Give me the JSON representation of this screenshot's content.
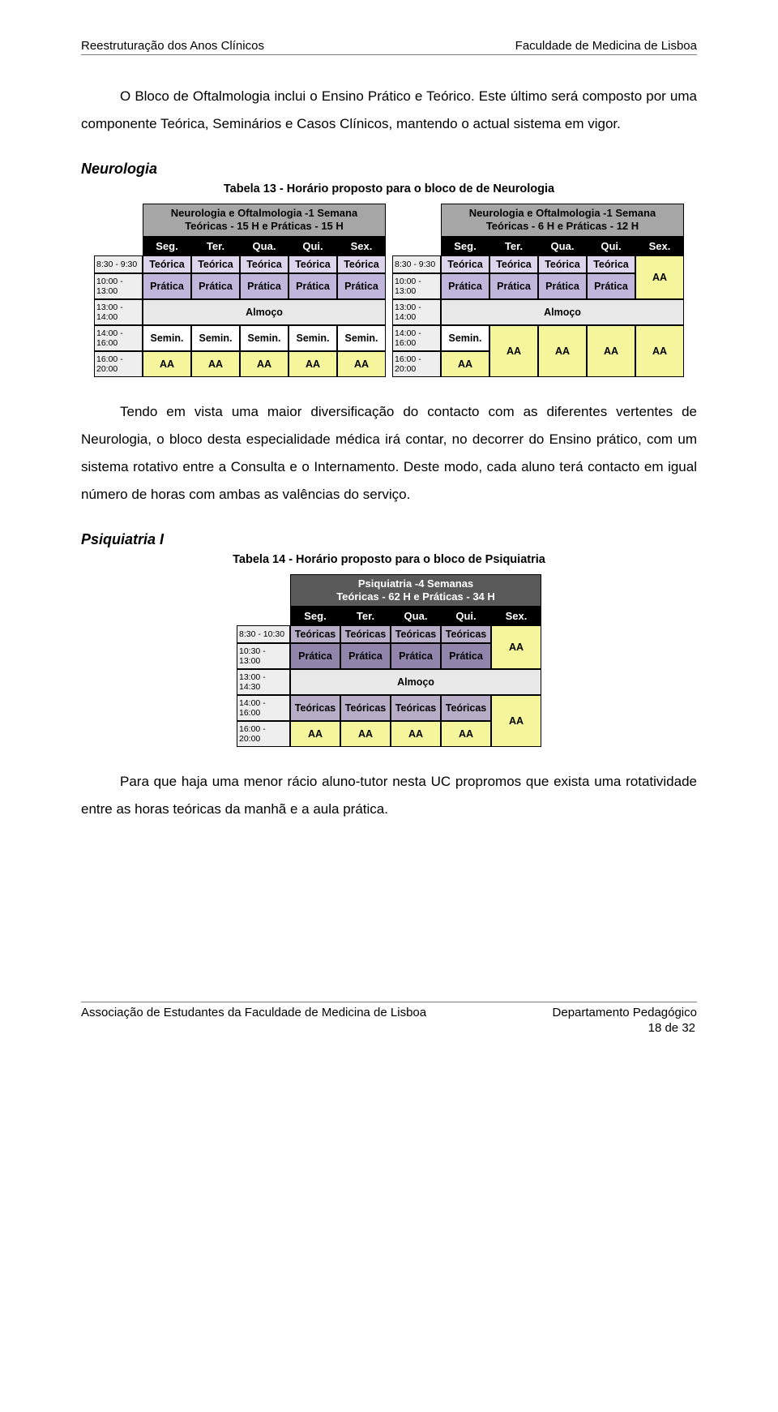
{
  "header": {
    "left": "Reestruturação dos Anos Clínicos",
    "right": "Faculdade de Medicina de Lisboa"
  },
  "para1": "O Bloco de Oftalmologia inclui o Ensino Prático e Teórico. Este último será composto por uma componente Teórica, Seminários e Casos Clínicos, mantendo o actual sistema em vigor.",
  "section_neuro": "Neurologia",
  "caption_neuro": "Tabela 13 - Horário proposto para o bloco de de Neurologia",
  "colors": {
    "title_bg": "#a6a6a6",
    "dayhead_bg": "#000000",
    "dayhead_fg": "#ffffff",
    "time_bg": "#eeeeee",
    "teorica": "#dcd5ec",
    "pratica": "#c0b6dc",
    "almoco": "#e8e8e8",
    "semin": "#ffffff",
    "aa": "#f5f59c",
    "teoricas_psi": "#b7adc7",
    "pratica_psi": "#9285ab"
  },
  "neuro_left": {
    "title": "Neurologia e Oftalmologia -1 Semana\nTeóricas - 15 H e Práticas - 15 H",
    "days": [
      "Seg.",
      "Ter.",
      "Qua.",
      "Qui.",
      "Sex."
    ],
    "times": [
      "8:30 - 9:30",
      "10:00 - 13:00",
      "13:00 - 14:00",
      "14:00 - 16:00",
      "16:00 - 20:00"
    ],
    "rows": [
      {
        "cells": [
          "Teórica",
          "Teórica",
          "Teórica",
          "Teórica",
          "Teórica"
        ],
        "color": "#dcd5ec"
      },
      {
        "cells": [
          "Prática",
          "Prática",
          "Prática",
          "Prática",
          "Prática"
        ],
        "color": "#c0b6dc"
      },
      {
        "merged": "Almoço",
        "color": "#e8e8e8"
      },
      {
        "cells": [
          "Semin.",
          "Semin.",
          "Semin.",
          "Semin.",
          "Semin."
        ],
        "color": "#ffffff"
      },
      {
        "cells": [
          "AA",
          "AA",
          "AA",
          "AA",
          "AA"
        ],
        "color": "#f5f59c"
      }
    ]
  },
  "neuro_right": {
    "title": "Neurologia e Oftalmologia -1 Semana\nTeóricas - 6 H e Práticas - 12 H",
    "days": [
      "Seg.",
      "Ter.",
      "Qua.",
      "Qui.",
      "Sex."
    ],
    "times": [
      "8:30 - 9:30",
      "10:00 - 13:00",
      "13:00 - 14:00",
      "14:00 - 16:00",
      "16:00 - 20:00"
    ]
  },
  "para2": "Tendo em vista uma maior diversificação do contacto com as diferentes vertentes de Neurologia, o bloco desta especialidade médica irá contar, no decorrer do Ensino prático, com um sistema rotativo entre a Consulta e o Internamento. Deste modo, cada aluno terá contacto em igual número de horas com ambas as valências do serviço.",
  "section_psi": "Psiquiatria I",
  "caption_psi": "Tabela 14 - Horário proposto para o bloco de Psiquiatria",
  "psi": {
    "title": "Psiquiatria -4 Semanas\nTeóricas - 62 H e Práticas - 34 H",
    "days": [
      "Seg.",
      "Ter.",
      "Qua.",
      "Qui.",
      "Sex."
    ],
    "times": [
      "8:30 - 10:30",
      "10:30 - 13:00",
      "13:00 - 14:30",
      "14:00 - 16:00",
      "16:00 - 20:00"
    ]
  },
  "para3": "Para que haja uma menor rácio aluno-tutor nesta UC propromos que exista uma rotatividade entre as horas teóricas da manhã e a aula prática.",
  "footer": {
    "left": "Associação de Estudantes da Faculdade de Medicina de Lisboa",
    "right": "Departamento Pedagógico",
    "page": "18 de 32"
  }
}
